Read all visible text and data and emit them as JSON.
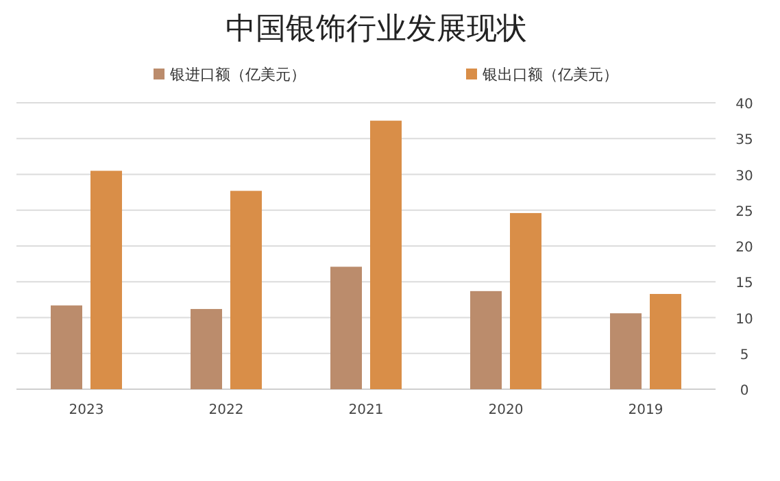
{
  "chart_data": {
    "type": "bar",
    "title": "中国银饰行业发展现状",
    "categories": [
      "2023",
      "2022",
      "2021",
      "2020",
      "2019"
    ],
    "series": [
      {
        "name": "银进口额（亿美元）",
        "color": "#bb8c6c",
        "values": [
          11.7,
          11.2,
          17.1,
          13.7,
          10.6
        ]
      },
      {
        "name": "银出口额（亿美元）",
        "color": "#d98e48",
        "values": [
          30.5,
          27.7,
          37.5,
          24.6,
          13.3
        ]
      }
    ],
    "ylim": [
      0,
      40
    ],
    "yticks": [
      0,
      5,
      10,
      15,
      20,
      25,
      30,
      35,
      40
    ],
    "grid": "y",
    "legend": "top"
  }
}
